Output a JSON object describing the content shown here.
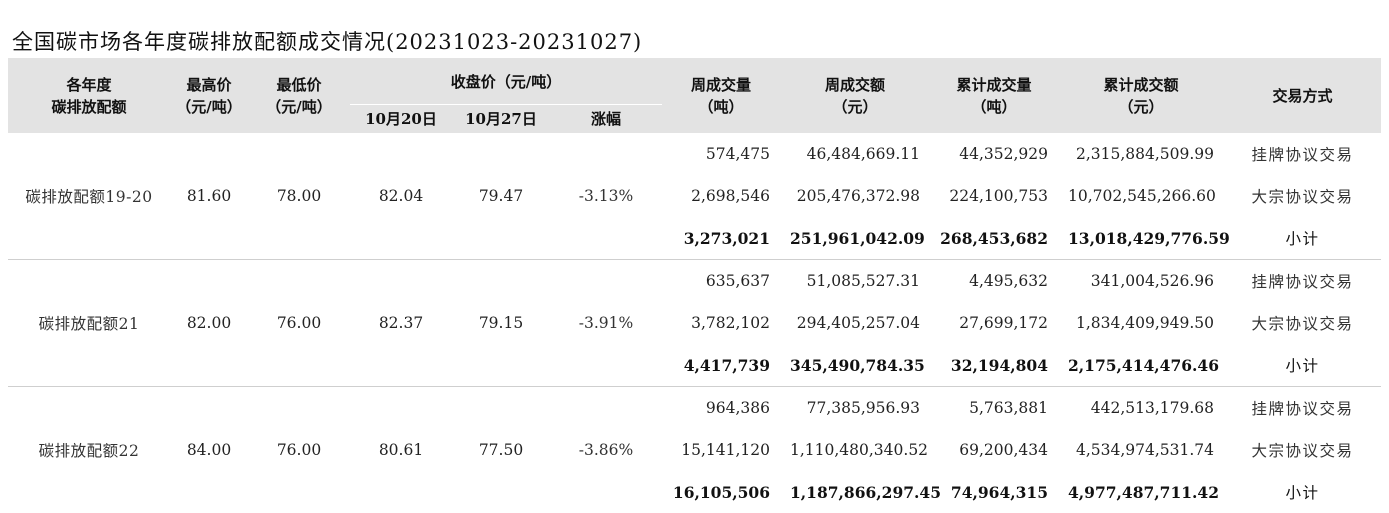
{
  "title": "全国碳市场各年度碳排放配额成交情况(20231023-20231027)",
  "headers": {
    "allowance": [
      "各年度",
      "碳排放配额"
    ],
    "high": [
      "最高价",
      "（元/吨）"
    ],
    "low": [
      "最低价",
      "（元/吨）"
    ],
    "closing": "收盘价（元/吨）",
    "oct20": "10月20日",
    "oct27": "10月27日",
    "change": "涨幅",
    "week_volume": [
      "周成交量",
      "（吨）"
    ],
    "week_amount": [
      "周成交额",
      "（元）"
    ],
    "cum_volume": [
      "累计成交量",
      "（吨）"
    ],
    "cum_amount": [
      "累计成交额",
      "（元）"
    ],
    "mode": "交易方式"
  },
  "groups": [
    {
      "name": "碳排放配额19-20",
      "high": "81.60",
      "low": "78.00",
      "oct20": "82.04",
      "oct27": "79.47",
      "change": "-3.13%",
      "rows": [
        {
          "week_volume": "574,475",
          "week_amount": "46,484,669.11",
          "cum_volume": "44,352,929",
          "cum_amount": "2,315,884,509.99",
          "mode": "挂牌协议交易"
        },
        {
          "week_volume": "2,698,546",
          "week_amount": "205,476,372.98",
          "cum_volume": "224,100,753",
          "cum_amount": "10,702,545,266.60",
          "mode": "大宗协议交易"
        },
        {
          "week_volume": "3,273,021",
          "week_amount": "251,961,042.09",
          "cum_volume": "268,453,682",
          "cum_amount": "13,018,429,776.59",
          "mode": "小计"
        }
      ]
    },
    {
      "name": "碳排放配额21",
      "high": "82.00",
      "low": "76.00",
      "oct20": "82.37",
      "oct27": "79.15",
      "change": "-3.91%",
      "rows": [
        {
          "week_volume": "635,637",
          "week_amount": "51,085,527.31",
          "cum_volume": "4,495,632",
          "cum_amount": "341,004,526.96",
          "mode": "挂牌协议交易"
        },
        {
          "week_volume": "3,782,102",
          "week_amount": "294,405,257.04",
          "cum_volume": "27,699,172",
          "cum_amount": "1,834,409,949.50",
          "mode": "大宗协议交易"
        },
        {
          "week_volume": "4,417,739",
          "week_amount": "345,490,784.35",
          "cum_volume": "32,194,804",
          "cum_amount": "2,175,414,476.46",
          "mode": "小计"
        }
      ]
    },
    {
      "name": "碳排放配额22",
      "high": "84.00",
      "low": "76.00",
      "oct20": "80.61",
      "oct27": "77.50",
      "change": "-3.86%",
      "rows": [
        {
          "week_volume": "964,386",
          "week_amount": "77,385,956.93",
          "cum_volume": "5,763,881",
          "cum_amount": "442,513,179.68",
          "mode": "挂牌协议交易"
        },
        {
          "week_volume": "15,141,120",
          "week_amount": "1,110,480,340.52",
          "cum_volume": "69,200,434",
          "cum_amount": "4,534,974,531.74",
          "mode": "大宗协议交易"
        },
        {
          "week_volume": "16,105,506",
          "week_amount": "1,187,866,297.45",
          "cum_volume": "74,964,315",
          "cum_amount": "4,977,487,711.42",
          "mode": "小计"
        }
      ]
    }
  ]
}
